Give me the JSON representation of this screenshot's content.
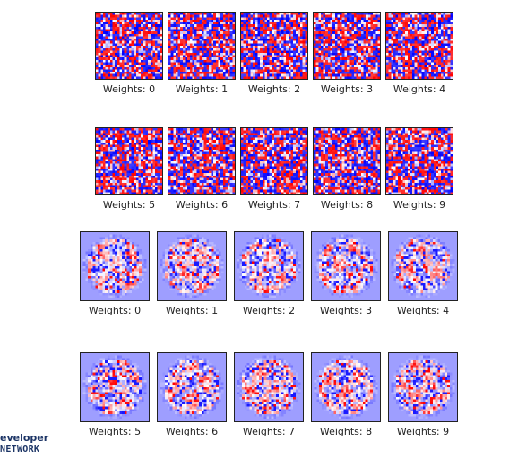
{
  "figure_blocks": [
    {
      "style": "random-init",
      "panels": [
        {
          "label": "Weights: 0"
        },
        {
          "label": "Weights: 1"
        },
        {
          "label": "Weights: 2"
        },
        {
          "label": "Weights: 3"
        },
        {
          "label": "Weights: 4"
        },
        {
          "label": "Weights: 5"
        },
        {
          "label": "Weights: 6"
        },
        {
          "label": "Weights: 7"
        },
        {
          "label": "Weights: 8"
        },
        {
          "label": "Weights: 9"
        }
      ]
    },
    {
      "style": "trained",
      "panels": [
        {
          "label": "Weights: 0"
        },
        {
          "label": "Weights: 1"
        },
        {
          "label": "Weights: 2"
        },
        {
          "label": "Weights: 3"
        },
        {
          "label": "Weights: 4"
        },
        {
          "label": "Weights: 5"
        },
        {
          "label": "Weights: 6"
        },
        {
          "label": "Weights: 7"
        },
        {
          "label": "Weights: 8"
        },
        {
          "label": "Weights: 9"
        }
      ]
    }
  ],
  "colormap": {
    "negative": "#0000ff",
    "neutral": "#ffffff",
    "positive": "#ff0000"
  },
  "watermark": {
    "line1": "eveloper",
    "line2": "NETWORK"
  }
}
